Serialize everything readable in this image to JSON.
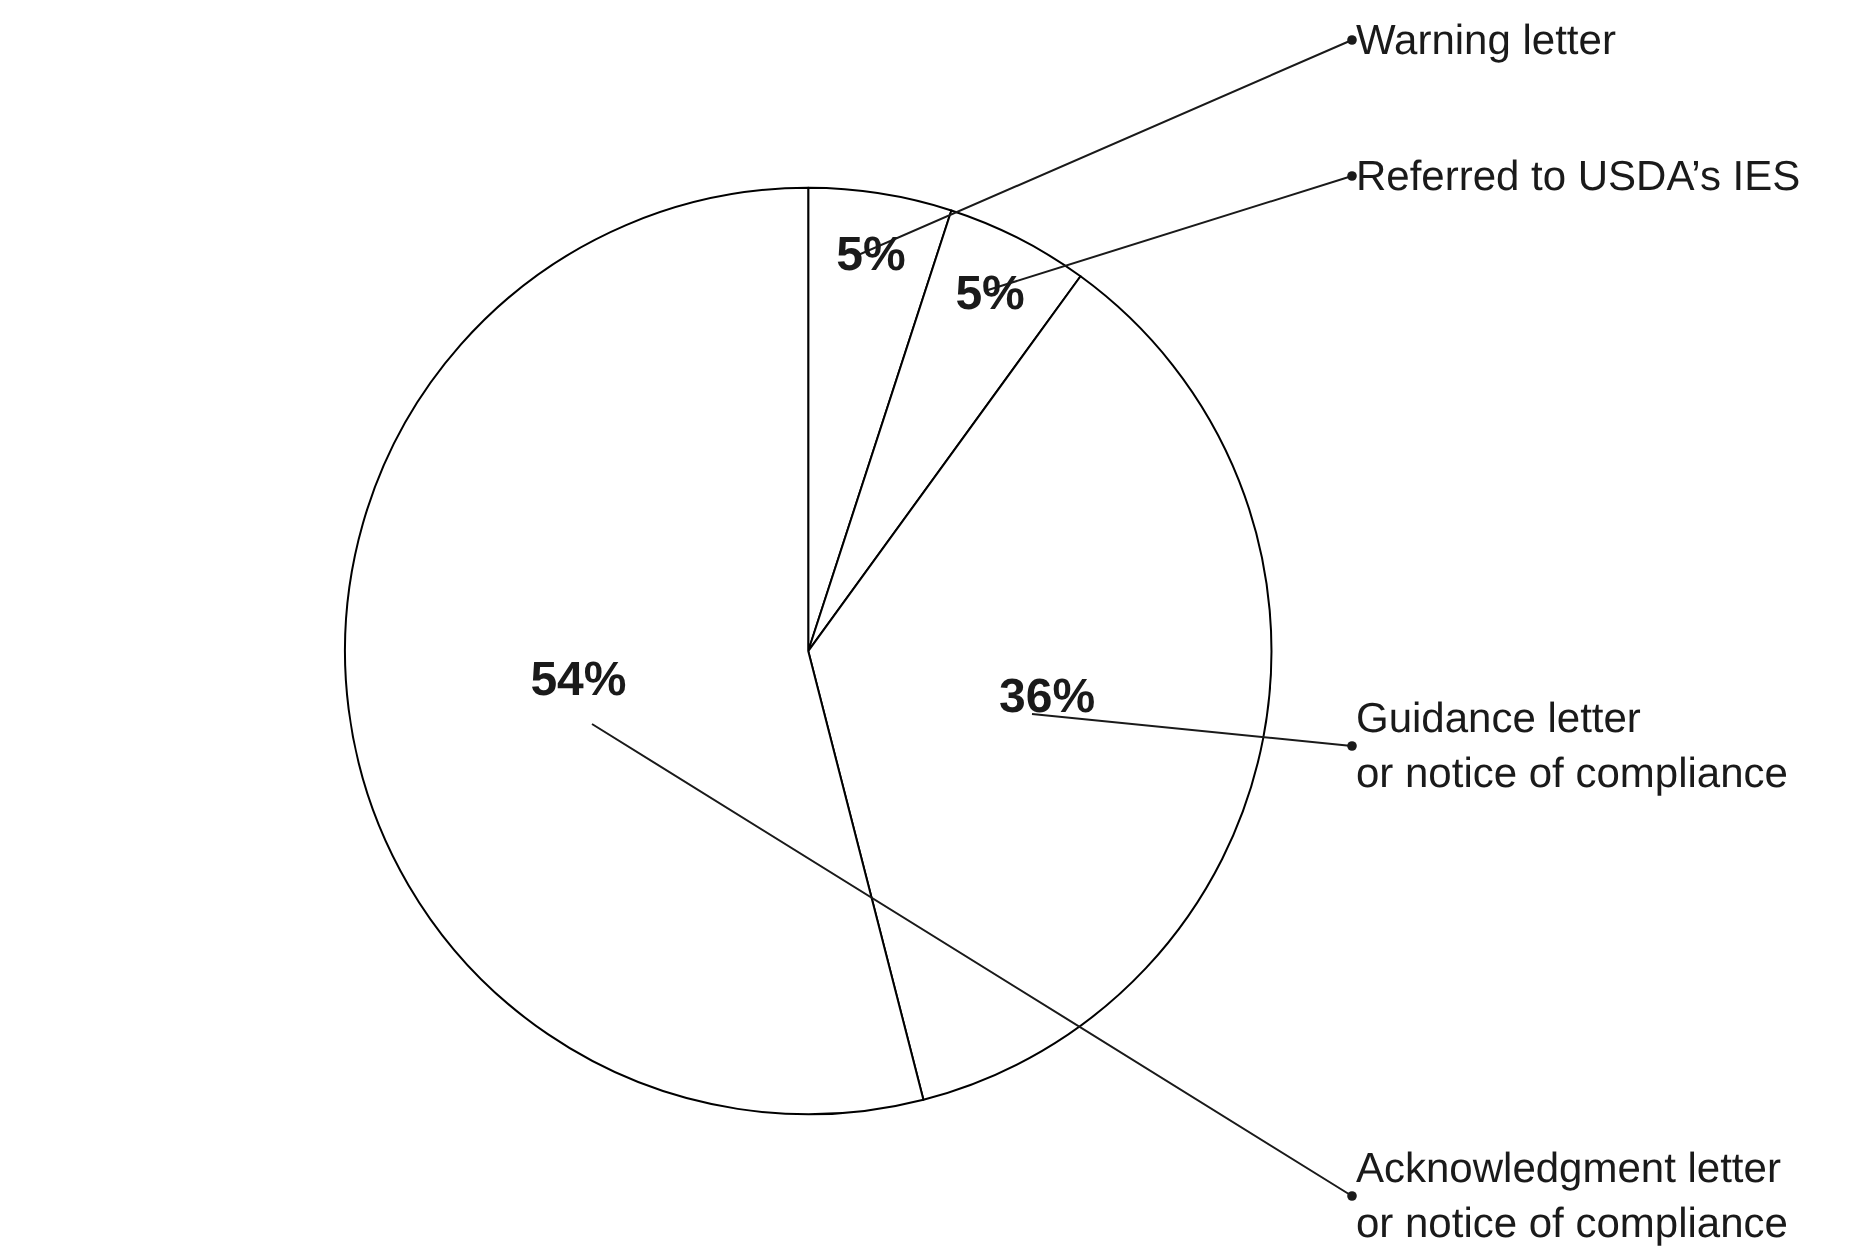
{
  "chart_data": {
    "type": "pie",
    "categories": [
      "Warning letter",
      "Referred to USDA’s IES",
      "Guidance letter or notice of compliance",
      "Acknowledgment letter or notice of compliance"
    ],
    "values": [
      5,
      5,
      36,
      54
    ],
    "value_labels": [
      "5%",
      "5%",
      "36%",
      "54%"
    ],
    "colors": [
      "#ffffff",
      "#ffffff",
      "#ffffff",
      "#ffffff"
    ],
    "legend": false
  }
}
